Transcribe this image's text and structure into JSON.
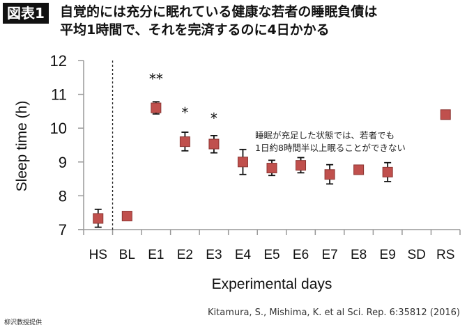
{
  "header": {
    "badge": "図表1",
    "title_line1": "自覚的には充分に眠れている健康な若者の睡眠負債は",
    "title_line2": "平均1時間で、それを完済するのに4日かかる"
  },
  "chart_data": {
    "type": "scatter",
    "xlabel": "Experimental days",
    "ylabel": "Sleep time (h)",
    "ylim": [
      7,
      12
    ],
    "yticks": [
      "7",
      "8",
      "9",
      "10",
      "11",
      "12"
    ],
    "categories": [
      "HS",
      "BL",
      "E1",
      "E2",
      "E3",
      "E4",
      "E5",
      "E6",
      "E7",
      "E8",
      "E9",
      "SD",
      "RS"
    ],
    "values": [
      7.33,
      7.4,
      10.6,
      9.6,
      9.53,
      9.0,
      8.82,
      8.9,
      8.63,
      8.77,
      8.7,
      null,
      10.4
    ],
    "error_low": [
      7.07,
      null,
      10.42,
      9.33,
      9.27,
      8.63,
      8.6,
      8.68,
      8.35,
      8.7,
      8.42,
      null,
      10.3
    ],
    "error_high": [
      7.6,
      null,
      10.78,
      9.88,
      9.78,
      9.37,
      9.05,
      9.13,
      8.92,
      8.85,
      8.98,
      null,
      10.5
    ],
    "significance": [
      {
        "category": "E1",
        "label": "**"
      },
      {
        "category": "E2",
        "label": "*"
      },
      {
        "category": "E3",
        "label": "*"
      }
    ],
    "divider_after": "HS",
    "marker_color": "#c0504d",
    "grid": false
  },
  "annotation": {
    "line1": "睡眠が充足した状態では、若者でも",
    "line2": "1日約8時間半以上眠ることができない"
  },
  "citation": "Kitamura, S., Mishima, K. et al Sci. Rep. 6:35812 (2016)",
  "credit": "柳沢教授提供"
}
